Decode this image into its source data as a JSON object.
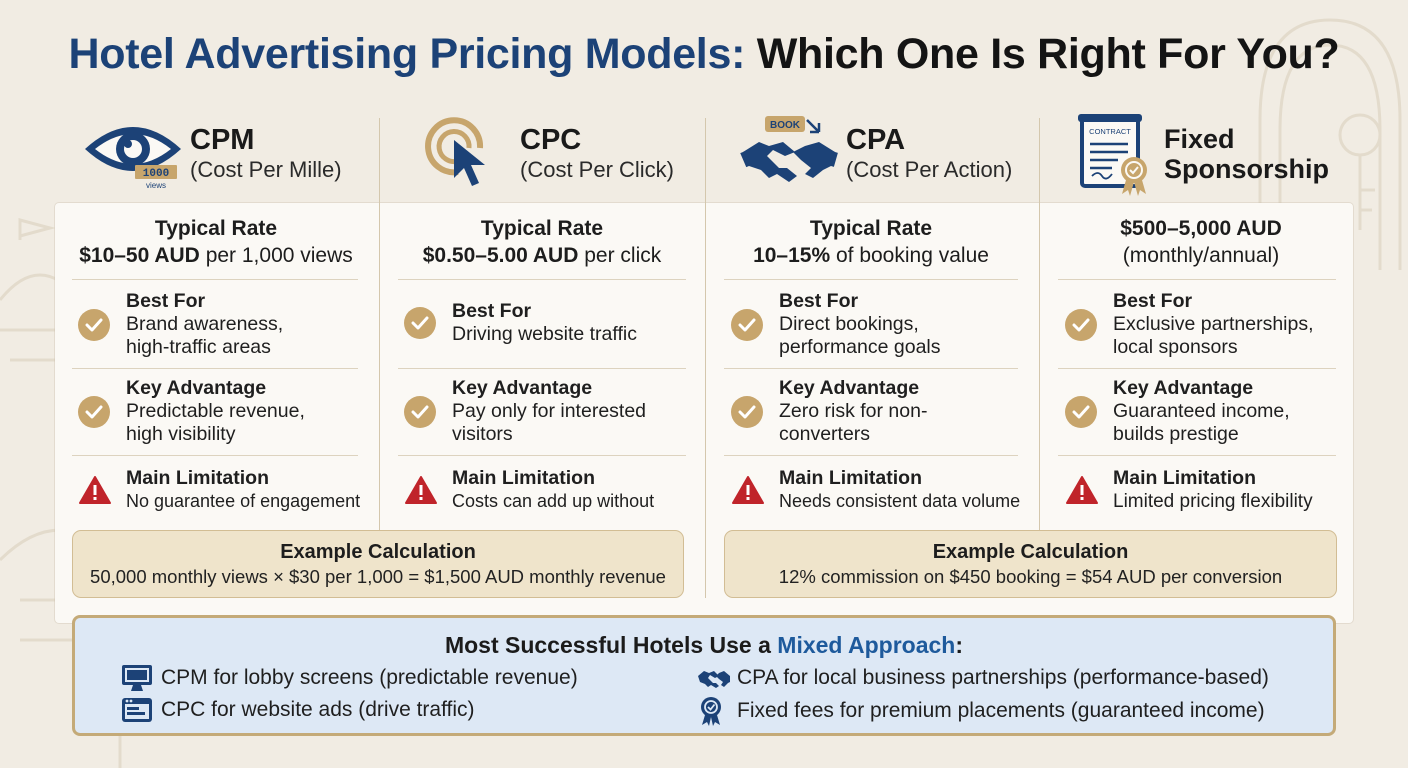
{
  "title": {
    "part1": "Hotel Advertising Pricing Models:",
    "part2": "Which One Is Right For You?"
  },
  "colors": {
    "navy": "#1c4277",
    "gold": "#c7a56c",
    "warning": "#c0242a",
    "highlight_blue": "#1e5a9c"
  },
  "models": [
    {
      "icon": "eye-icon",
      "icon_badge_top": "1000",
      "icon_badge_bottom": "views",
      "abbr": "CPM",
      "full": "(Cost Per Mille)",
      "rate_label": "Typical Rate",
      "rate_value_bold": "$10–50 AUD",
      "rate_value_rest": " per 1,000 views",
      "best_for_title": "Best For",
      "best_for_text": "Brand awareness, high-traffic areas",
      "advantage_title": "Key Advantage",
      "advantage_text": "Predictable revenue, high visibility",
      "limitation_title": "Main Limitation",
      "limitation_text": "No guarantee of engagement"
    },
    {
      "icon": "cursor-click-icon",
      "abbr": "CPC",
      "full": "(Cost Per Click)",
      "rate_label": "Typical Rate",
      "rate_value_bold": "$0.50–5.00 AUD",
      "rate_value_rest": " per click",
      "best_for_title": "Best For",
      "best_for_text": "Driving website traffic",
      "advantage_title": "Key Advantage",
      "advantage_text": "Pay only for interested visitors",
      "limitation_title": "Main Limitation",
      "limitation_text": "Costs can add up without"
    },
    {
      "icon": "handshake-icon",
      "icon_badge_top": "BOOK",
      "abbr": "CPA",
      "full": "(Cost Per Action)",
      "rate_label": "Typical Rate",
      "rate_value_bold": "10–15%",
      "rate_value_rest": " of booking value",
      "best_for_title": "Best For",
      "best_for_text": "Direct bookings, performance goals",
      "advantage_title": "Key Advantage",
      "advantage_text": "Zero risk for non-converters",
      "limitation_title": "Main Limitation",
      "limitation_text": "Needs consistent data volume"
    },
    {
      "icon": "contract-icon",
      "icon_badge_top": "CONTRACT",
      "name_line1": "Fixed",
      "name_line2": "Sponsorship",
      "rate_value_bold": "$500–5,000 AUD",
      "rate_value_line2": "(monthly/annual)",
      "best_for_title": "Best For",
      "best_for_text": "Exclusive partnerships, local sponsors",
      "advantage_title": "Key Advantage",
      "advantage_text": "Guaranteed income, builds prestige",
      "limitation_title": "Main Limitation",
      "limitation_text": "Limited pricing flexibility"
    }
  ],
  "examples": [
    {
      "title": "Example Calculation",
      "body": "50,000 monthly views × $30 per 1,000 = $1,500 AUD monthly revenue"
    },
    {
      "title": "Example Calculation",
      "body": "12% commission on $450 booking = $54 AUD per conversion"
    }
  ],
  "mixed": {
    "title_pre": "Most Successful Hotels Use a ",
    "title_highlight": "Mixed Approach",
    "title_post": ":",
    "items": [
      {
        "icon": "monitor-icon",
        "text": "CPM for lobby screens (predictable revenue)"
      },
      {
        "icon": "browser-icon",
        "text": "CPC for website ads (drive traffic)"
      },
      {
        "icon": "handshake-icon",
        "text": "CPA for local business partnerships (performance-based)"
      },
      {
        "icon": "award-badge-icon",
        "text": "Fixed fees for premium placements (guaranteed income)"
      }
    ]
  }
}
